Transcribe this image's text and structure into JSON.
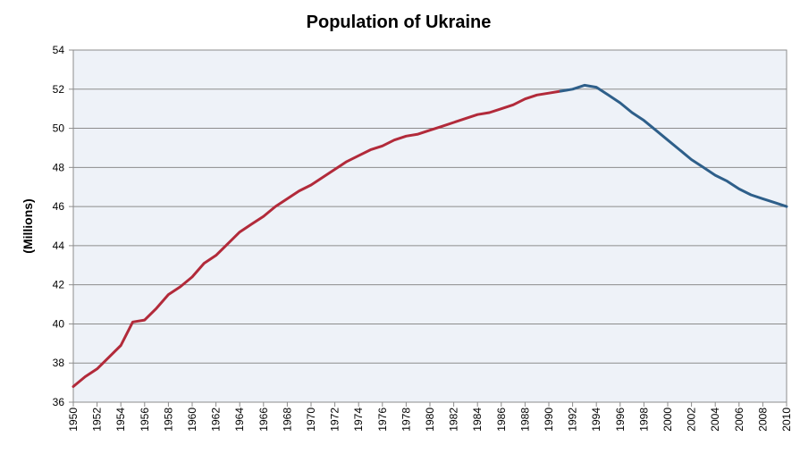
{
  "chart_data": {
    "type": "line",
    "title": "Population of Ukraine",
    "ylabel": "(Millions)",
    "xlabel": "",
    "xlim": [
      1950,
      2010
    ],
    "ylim": [
      36,
      54
    ],
    "y_ticks": [
      "36",
      "38",
      "40",
      "42",
      "44",
      "46",
      "48",
      "50",
      "52",
      "54"
    ],
    "x_ticks": [
      "1950",
      "1952",
      "1954",
      "1956",
      "1958",
      "1960",
      "1962",
      "1964",
      "1966",
      "1968",
      "1970",
      "1972",
      "1974",
      "1976",
      "1978",
      "1980",
      "1982",
      "1984",
      "1986",
      "1988",
      "1990",
      "1992",
      "1994",
      "1996",
      "1998",
      "2000",
      "2002",
      "2004",
      "2006",
      "2008",
      "2010"
    ],
    "grid": "horizontal",
    "legend": "none",
    "series": [
      {
        "color": "#b22a3a",
        "x": [
          1950,
          1951,
          1952,
          1953,
          1954,
          1955,
          1956,
          1957,
          1958,
          1959,
          1960,
          1961,
          1962,
          1963,
          1964,
          1965,
          1966,
          1967,
          1968,
          1969,
          1970,
          1971,
          1972,
          1973,
          1974,
          1975,
          1976,
          1977,
          1978,
          1979,
          1980,
          1981,
          1982,
          1983,
          1984,
          1985,
          1986,
          1987,
          1988,
          1989,
          1990,
          1991
        ],
        "values": [
          36.8,
          37.3,
          37.7,
          38.3,
          38.9,
          40.1,
          40.2,
          40.8,
          41.5,
          41.9,
          42.4,
          43.1,
          43.5,
          44.1,
          44.7,
          45.1,
          45.5,
          46.0,
          46.4,
          46.8,
          47.1,
          47.5,
          47.9,
          48.3,
          48.6,
          48.9,
          49.1,
          49.4,
          49.6,
          49.7,
          49.9,
          50.1,
          50.3,
          50.5,
          50.7,
          50.8,
          51.0,
          51.2,
          51.5,
          51.7,
          51.8,
          51.9
        ]
      },
      {
        "color": "#2e5f8a",
        "x": [
          1991,
          1992,
          1993,
          1994,
          1995,
          1996,
          1997,
          1998,
          1999,
          2000,
          2001,
          2002,
          2003,
          2004,
          2005,
          2006,
          2007,
          2008,
          2009,
          2010
        ],
        "values": [
          51.9,
          52.0,
          52.2,
          52.1,
          51.7,
          51.3,
          50.8,
          50.4,
          49.9,
          49.4,
          48.9,
          48.4,
          48.0,
          47.6,
          47.3,
          46.9,
          46.6,
          46.4,
          46.2,
          46.0
        ]
      }
    ]
  }
}
